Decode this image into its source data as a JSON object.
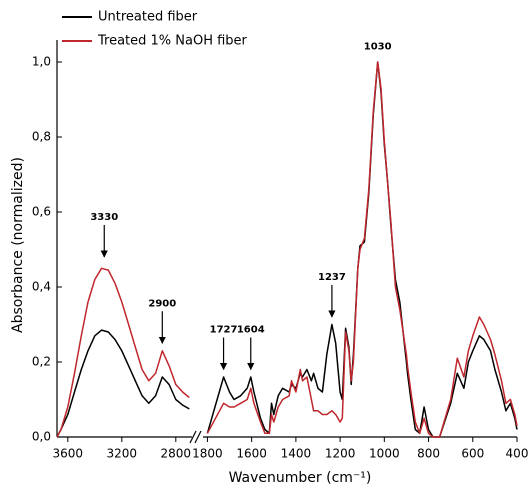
{
  "chart_data": [
    {
      "type": "line",
      "y_label": "Absorbance (normalized)",
      "ylim": [
        0,
        1.05
      ],
      "yticks": [
        {
          "value": 0,
          "label": "0,0"
        },
        {
          "value": 0.2,
          "label": "0,2"
        },
        {
          "value": 0.4,
          "label": "0,4"
        },
        {
          "value": 0.6,
          "label": "0,6"
        },
        {
          "value": 0.8,
          "label": "0,8"
        },
        {
          "value": 1.0,
          "label": "1,0"
        }
      ],
      "xlim": [
        3680,
        2680
      ],
      "xticks": [
        3600,
        3200,
        2800
      ],
      "x": [
        3680,
        3650,
        3600,
        3550,
        3500,
        3450,
        3400,
        3350,
        3300,
        3250,
        3200,
        3150,
        3100,
        3050,
        3000,
        2950,
        2900,
        2850,
        2800,
        2750,
        2700
      ],
      "series": [
        {
          "name": "Untreated fiber",
          "color": "#000000",
          "values": [
            0,
            0.02,
            0.06,
            0.12,
            0.18,
            0.23,
            0.27,
            0.285,
            0.28,
            0.26,
            0.23,
            0.19,
            0.15,
            0.11,
            0.09,
            0.11,
            0.16,
            0.14,
            0.1,
            0.085,
            0.075
          ]
        },
        {
          "name": "Treated 1% NaOH fiber",
          "color": "#c0272d",
          "values": [
            0,
            0.02,
            0.08,
            0.17,
            0.27,
            0.36,
            0.42,
            0.45,
            0.445,
            0.41,
            0.36,
            0.3,
            0.24,
            0.18,
            0.15,
            0.17,
            0.23,
            0.19,
            0.14,
            0.12,
            0.105
          ]
        }
      ],
      "annotations": [
        {
          "text": "3330",
          "x": 3330,
          "y": 0.48,
          "arrow": true
        },
        {
          "text": "2900",
          "x": 2900,
          "y": 0.25,
          "arrow": true
        }
      ]
    },
    {
      "type": "line",
      "x_label": "Wavenumber (cm⁻¹)",
      "ylim": [
        0,
        1.05
      ],
      "xlim": [
        1820,
        400
      ],
      "xticks": [
        1800,
        1600,
        1400,
        1200,
        1000,
        800,
        600,
        400
      ],
      "x": [
        1800,
        1727,
        1700,
        1680,
        1650,
        1620,
        1604,
        1590,
        1560,
        1540,
        1520,
        1510,
        1500,
        1480,
        1460,
        1430,
        1420,
        1400,
        1380,
        1370,
        1350,
        1330,
        1320,
        1300,
        1280,
        1260,
        1237,
        1220,
        1200,
        1190,
        1175,
        1160,
        1150,
        1140,
        1120,
        1110,
        1090,
        1070,
        1050,
        1030,
        1015,
        1000,
        985,
        970,
        950,
        930,
        900,
        895,
        880,
        860,
        840,
        820,
        800,
        780,
        750,
        700,
        670,
        640,
        620,
        600,
        570,
        550,
        520,
        500,
        470,
        450,
        430,
        410,
        400
      ],
      "series": [
        {
          "color": "#000000",
          "values": [
            0.01,
            0.16,
            0.12,
            0.1,
            0.11,
            0.13,
            0.16,
            0.12,
            0.05,
            0.02,
            0.01,
            0.09,
            0.06,
            0.11,
            0.13,
            0.12,
            0.14,
            0.13,
            0.17,
            0.16,
            0.18,
            0.15,
            0.17,
            0.13,
            0.12,
            0.22,
            0.3,
            0.25,
            0.12,
            0.1,
            0.29,
            0.24,
            0.14,
            0.22,
            0.45,
            0.51,
            0.52,
            0.65,
            0.86,
            1.0,
            0.92,
            0.78,
            0.68,
            0.56,
            0.42,
            0.36,
            0.2,
            0.17,
            0.1,
            0.02,
            0.01,
            0.08,
            0.02,
            0,
            0,
            0.09,
            0.17,
            0.13,
            0.2,
            0.23,
            0.27,
            0.26,
            0.23,
            0.18,
            0.12,
            0.07,
            0.09,
            0.05,
            0.02
          ]
        },
        {
          "color": "#c0272d",
          "values": [
            0.01,
            0.09,
            0.08,
            0.08,
            0.09,
            0.1,
            0.13,
            0.09,
            0.04,
            0.01,
            0.01,
            0.06,
            0.04,
            0.08,
            0.1,
            0.11,
            0.15,
            0.12,
            0.18,
            0.15,
            0.16,
            0.1,
            0.07,
            0.07,
            0.06,
            0.06,
            0.07,
            0.06,
            0.04,
            0.05,
            0.28,
            0.23,
            0.15,
            0.2,
            0.45,
            0.5,
            0.53,
            0.66,
            0.87,
            1.0,
            0.93,
            0.79,
            0.68,
            0.57,
            0.4,
            0.34,
            0.22,
            0.19,
            0.12,
            0.04,
            0.01,
            0.05,
            0.01,
            0,
            0,
            0.1,
            0.21,
            0.16,
            0.23,
            0.27,
            0.32,
            0.3,
            0.26,
            0.22,
            0.15,
            0.09,
            0.1,
            0.06,
            0.03
          ]
        }
      ],
      "annotations": [
        {
          "text": "1727",
          "x": 1727,
          "y": 0.18,
          "arrow": true
        },
        {
          "text": "1604",
          "x": 1604,
          "y": 0.18,
          "arrow": true
        },
        {
          "text": "1237",
          "x": 1237,
          "y": 0.32,
          "arrow": true
        },
        {
          "text": "1030",
          "x": 1030,
          "y": 1.02,
          "arrow": false
        }
      ]
    }
  ]
}
